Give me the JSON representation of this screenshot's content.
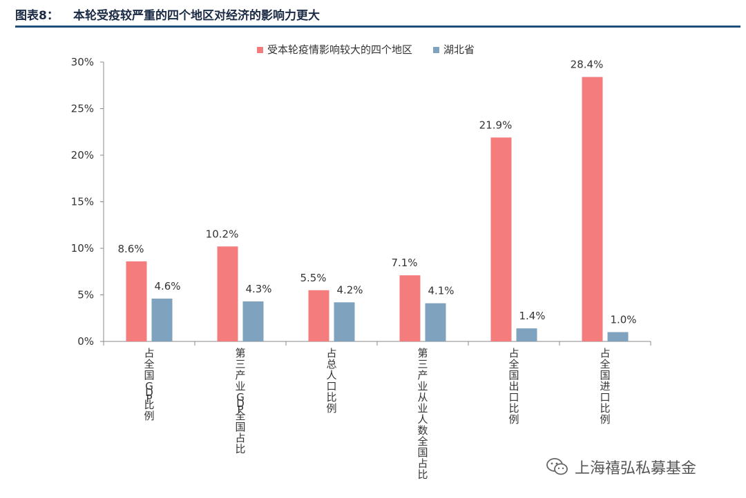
{
  "figure": {
    "label": "图表8：",
    "title": "本轮受疫较严重的四个地区对经济的影响力更大"
  },
  "watermark": {
    "text": "上海禧弘私募基金"
  },
  "chart_data": {
    "type": "bar",
    "title": "本轮受疫较严重的四个地区对经济的影响力更大",
    "categories": [
      "占全国GDP比例",
      "第三产业GDP全国占比",
      "占总人口比例",
      "第三产业从业人数全国占比",
      "占全国出口比例",
      "占全国进口比例"
    ],
    "series": [
      {
        "name": "受本轮疫情影响较大的四个地区",
        "color": "#f47c7c",
        "values": [
          8.6,
          10.2,
          5.5,
          7.1,
          21.9,
          28.4
        ],
        "labels": [
          "8.6%",
          "10.2%",
          "5.5%",
          "7.1%",
          "21.9%",
          "28.4%"
        ]
      },
      {
        "name": "湖北省",
        "color": "#7fa3bf",
        "values": [
          4.6,
          4.3,
          4.2,
          4.1,
          1.4,
          1.0
        ],
        "labels": [
          "4.6%",
          "4.3%",
          "4.2%",
          "4.1%",
          "1.4%",
          "1.0%"
        ]
      }
    ],
    "yticks": [
      0,
      5,
      10,
      15,
      20,
      25,
      30
    ],
    "ytick_labels": [
      "0%",
      "5%",
      "10%",
      "15%",
      "20%",
      "25%",
      "30%"
    ],
    "ylim": [
      0,
      30
    ],
    "xlabel": "",
    "ylabel": "",
    "grid": false,
    "legend_position": "top-center"
  }
}
